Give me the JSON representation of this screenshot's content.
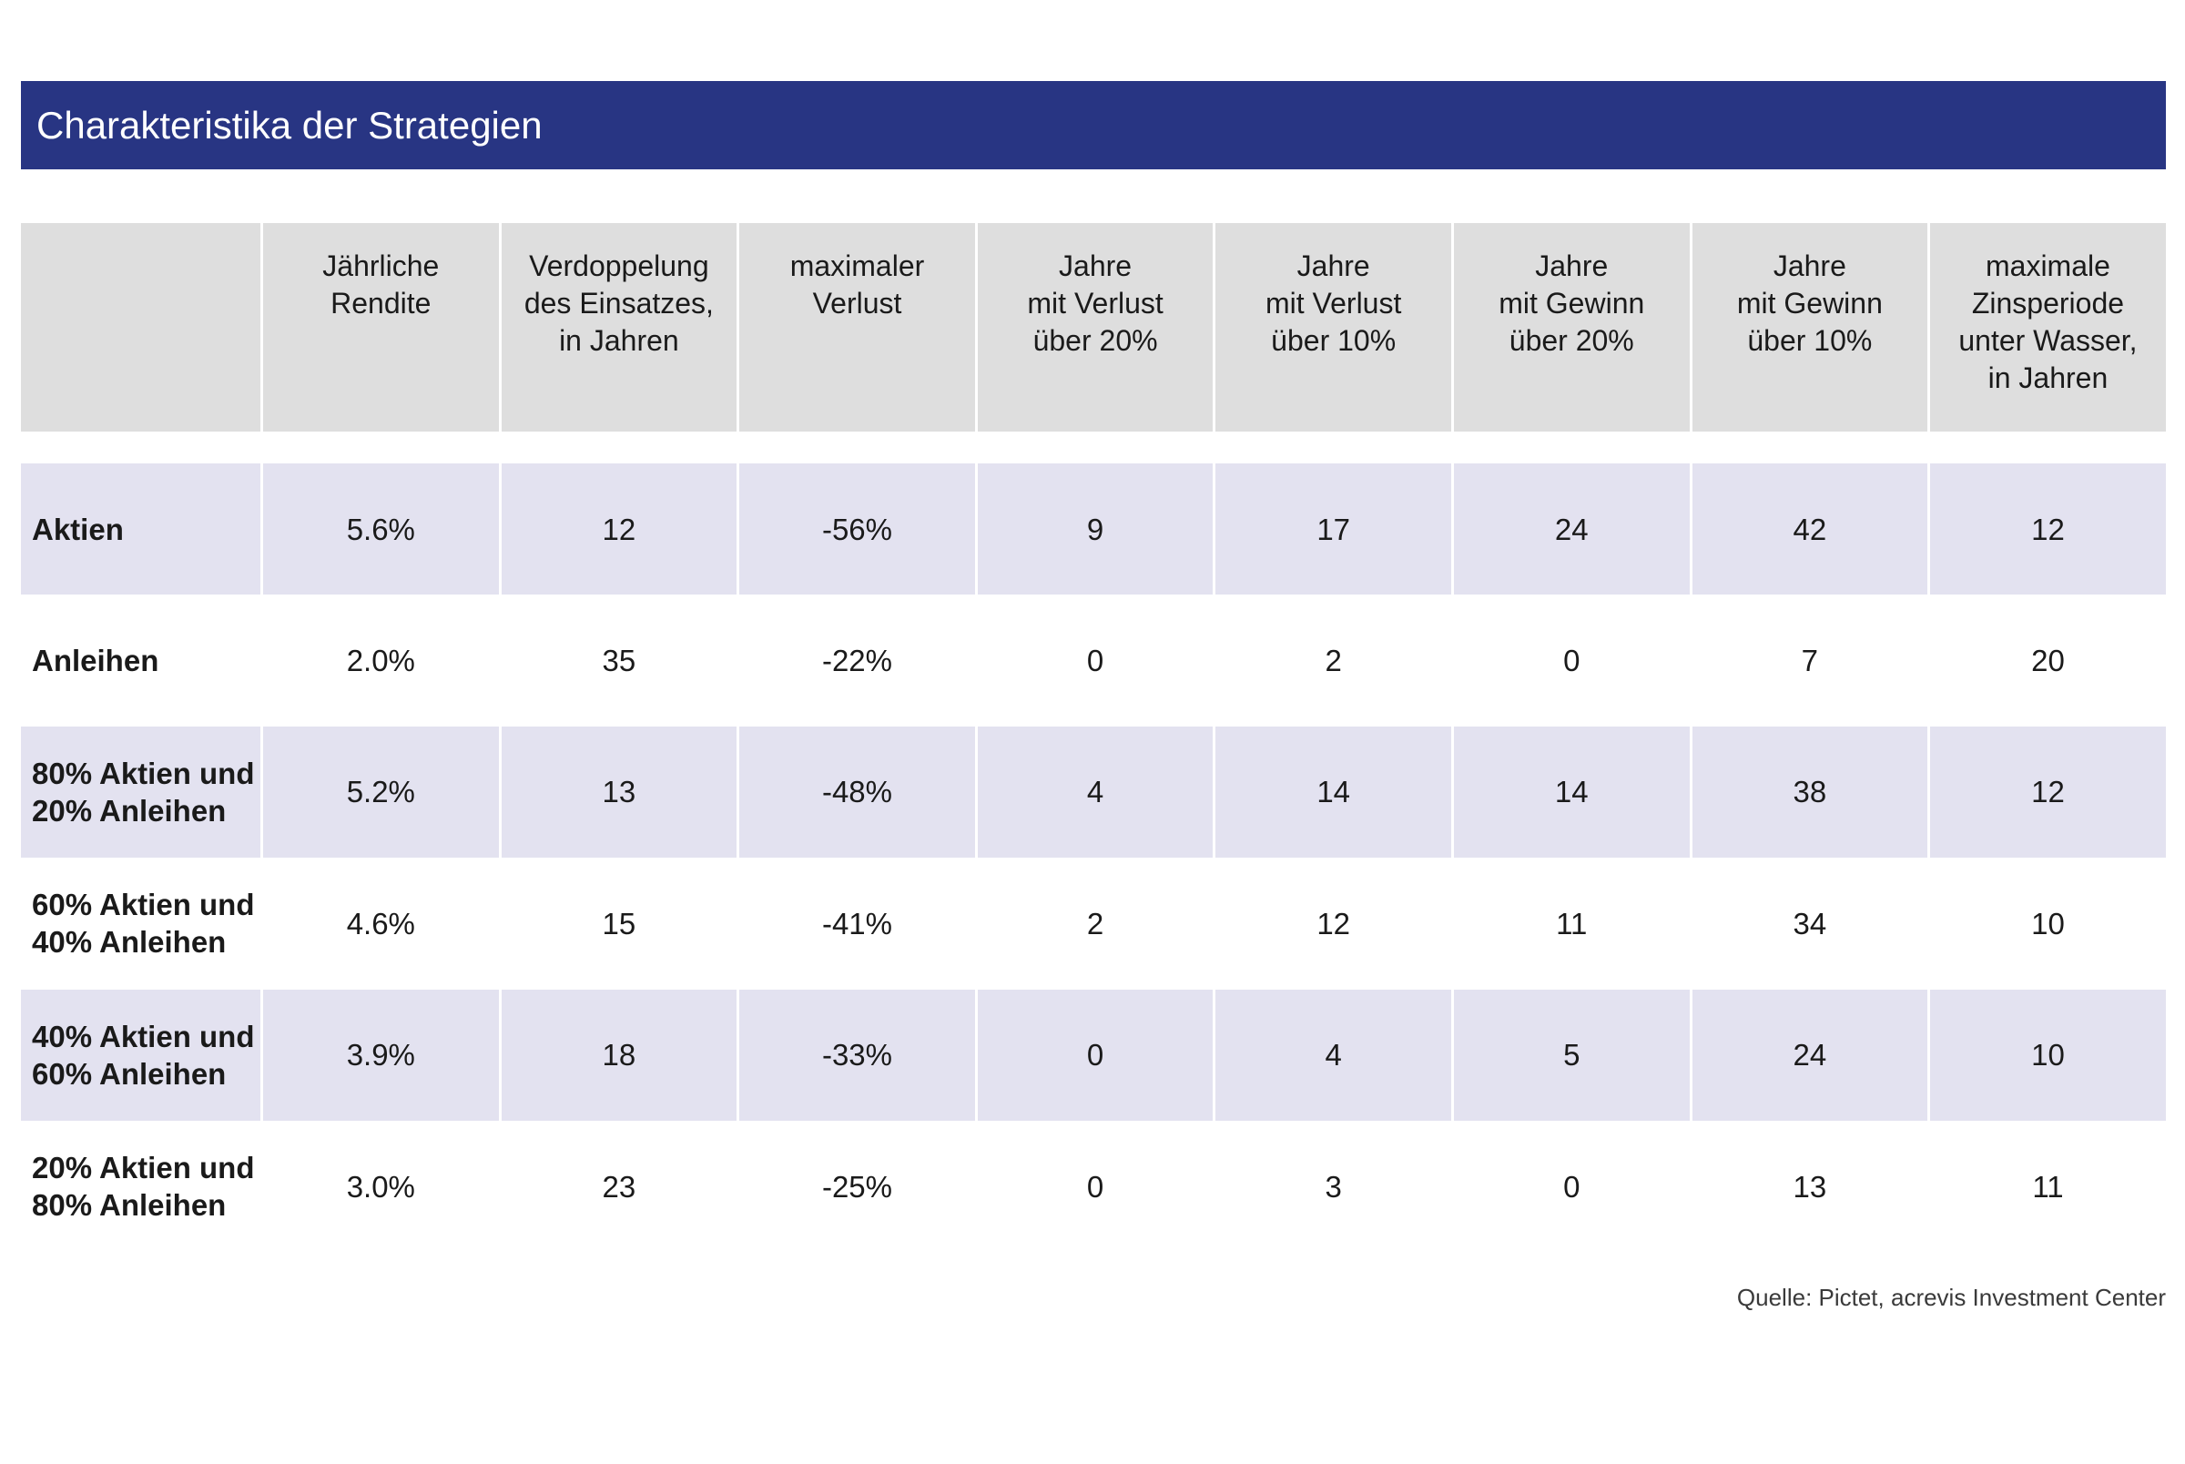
{
  "title": "Charakteristika der Strategien",
  "source": "Quelle: Pictet, acrevis Investment Center",
  "chart_data": {
    "type": "table",
    "title": "Charakteristika der Strategien",
    "columns": [
      "",
      "Jährliche\nRendite",
      "Verdoppelung\ndes Einsatzes,\nin Jahren",
      "maximaler\nVerlust",
      "Jahre\nmit Verlust\nüber 20%",
      "Jahre\nmit Verlust\nüber 10%",
      "Jahre\nmit Gewinn\nüber 20%",
      "Jahre\nmit Gewinn\nüber 10%",
      "maximale\nZinsperiode\nunter Wasser,\nin Jahren"
    ],
    "rows": [
      {
        "label": "Aktien",
        "values": [
          "5.6%",
          "12",
          "-56%",
          "9",
          "17",
          "24",
          "42",
          "12"
        ]
      },
      {
        "label": "Anleihen",
        "values": [
          "2.0%",
          "35",
          "-22%",
          "0",
          "2",
          "0",
          "7",
          "20"
        ]
      },
      {
        "label": "80% Aktien und\n20% Anleihen",
        "values": [
          "5.2%",
          "13",
          "-48%",
          "4",
          "14",
          "14",
          "38",
          "12"
        ]
      },
      {
        "label": "60% Aktien und\n40% Anleihen",
        "values": [
          "4.6%",
          "15",
          "-41%",
          "2",
          "12",
          "11",
          "34",
          "10"
        ]
      },
      {
        "label": "40% Aktien und\n60% Anleihen",
        "values": [
          "3.9%",
          "18",
          "-33%",
          "0",
          "4",
          "5",
          "24",
          "10"
        ]
      },
      {
        "label": "20% Aktien und\n80% Anleihen",
        "values": [
          "3.0%",
          "23",
          "-25%",
          "0",
          "3",
          "0",
          "13",
          "11"
        ]
      }
    ],
    "source": "Quelle: Pictet, acrevis Investment Center"
  },
  "colors": {
    "title_bar": "#283583",
    "header_bg": "#dedede",
    "shaded_row": "#e3e2f0"
  }
}
